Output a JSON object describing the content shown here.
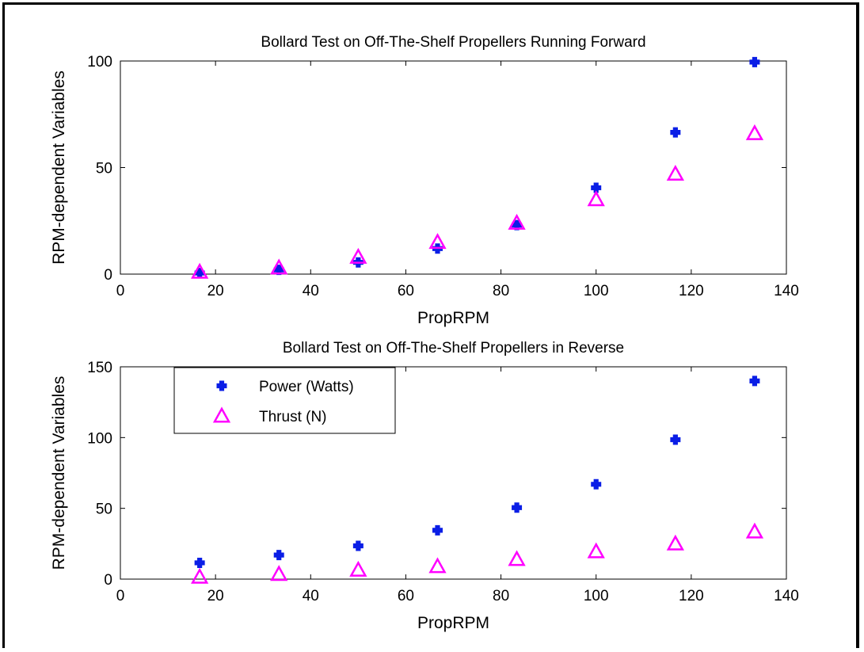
{
  "chart_data": [
    {
      "type": "scatter",
      "title": "Bollard Test on Off-The-Shelf Propellers Running Forward",
      "xlabel": "PropRPM",
      "ylabel": "RPM-dependent Variables",
      "xlim": [
        0,
        140
      ],
      "ylim": [
        0,
        100
      ],
      "xticks": [
        "0",
        "20",
        "40",
        "60",
        "80",
        "100",
        "120",
        "140"
      ],
      "yticks": [
        "0",
        "50",
        "100"
      ],
      "grid": false,
      "x": [
        16.67,
        33.33,
        50,
        66.67,
        83.33,
        100,
        116.67,
        133.33
      ],
      "series": [
        {
          "name": "Power (Watts)",
          "color": "#0a1ee6",
          "marker": "filled-plus",
          "values": [
            0.5,
            2,
            5.5,
            12,
            23,
            40.5,
            66.5,
            99.5
          ]
        },
        {
          "name": "Thrust (N)",
          "color": "#ff00ff",
          "marker": "triangle",
          "values": [
            1,
            3,
            8,
            15,
            24,
            35,
            47,
            66
          ]
        }
      ]
    },
    {
      "type": "scatter",
      "title": "Bollard Test on Off-The-Shelf Propellers in Reverse",
      "xlabel": "PropRPM",
      "ylabel": "RPM-dependent Variables",
      "xlim": [
        0,
        140
      ],
      "ylim": [
        0,
        150
      ],
      "xticks": [
        "0",
        "20",
        "40",
        "60",
        "80",
        "100",
        "120",
        "140"
      ],
      "yticks": [
        "0",
        "50",
        "100",
        "150"
      ],
      "grid": false,
      "legend": "top-left",
      "x": [
        16.67,
        33.33,
        50,
        66.67,
        83.33,
        100,
        116.67,
        133.33
      ],
      "series": [
        {
          "name": "Power (Watts)",
          "color": "#0a1ee6",
          "marker": "filled-plus",
          "values": [
            11.5,
            17,
            23.5,
            34.5,
            50.5,
            67,
            98.5,
            140
          ]
        },
        {
          "name": "Thrust (N)",
          "color": "#ff00ff",
          "marker": "triangle",
          "values": [
            1.5,
            3.5,
            6.5,
            9,
            14,
            19.5,
            25,
            33.5
          ]
        }
      ]
    }
  ]
}
